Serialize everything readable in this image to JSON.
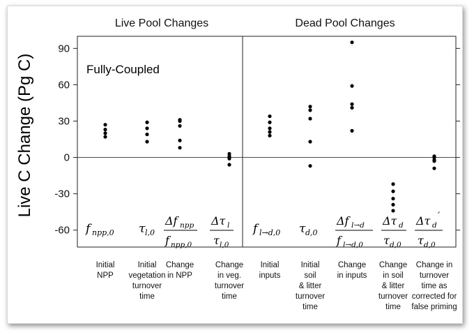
{
  "chart_data": {
    "type": "scatter",
    "ylabel": "Live C Change (Pg C)",
    "yticks": [
      90,
      60,
      30,
      0,
      -30,
      -60
    ],
    "ylim": [
      -74,
      100
    ],
    "annotation": "Fully-Coupled",
    "panels": [
      {
        "title": "Live Pool Changes",
        "categories": [
          {
            "caption": [
              "Initial",
              "NPP"
            ],
            "symbol": "f_{npp,0}",
            "values": [
              27,
              23,
              20,
              17
            ]
          },
          {
            "caption": [
              "Initial",
              "vegetation",
              "turnover",
              "time"
            ],
            "symbol": "τ_{l,0}",
            "values": [
              29,
              24,
              19,
              13
            ]
          },
          {
            "caption": [
              "Change",
              "in NPP"
            ],
            "symbol": "Δf_npp / f_{npp,0}",
            "values": [
              31,
              30,
              26,
              14,
              8
            ]
          },
          {
            "caption": [
              "Change",
              "in veg.",
              "turnover",
              "time"
            ],
            "symbol": "Δτ_l / τ_{l,0}",
            "values": [
              3,
              1,
              0,
              -1,
              -6
            ]
          }
        ]
      },
      {
        "title": "Dead Pool Changes",
        "categories": [
          {
            "caption": [
              "Initial",
              "inputs"
            ],
            "symbol": "f_{l→d,0}",
            "values": [
              34,
              29,
              24,
              21,
              18
            ]
          },
          {
            "caption": [
              "Initial",
              "soil",
              "& litter",
              "turnover",
              "time"
            ],
            "symbol": "τ_{d,0}",
            "values": [
              42,
              39,
              32,
              13,
              -7
            ]
          },
          {
            "caption": [
              "Change",
              "in inputs"
            ],
            "symbol": "Δf_{l→d} / f_{l→d,0}",
            "values": [
              95,
              59,
              44,
              41,
              22
            ]
          },
          {
            "caption": [
              "Change",
              "in soil",
              "& litter",
              "turnover",
              "time"
            ],
            "symbol": "Δτ_d / τ_{d,0}",
            "values": [
              -22,
              -28,
              -34,
              -39,
              -44
            ]
          },
          {
            "caption": [
              "Change in",
              "turnover",
              "time as",
              "corrected for",
              "false priming"
            ],
            "symbol": "Δτ_d′ / τ_{d,0}",
            "values": [
              1,
              0,
              -2,
              -3,
              -9
            ]
          }
        ]
      }
    ]
  }
}
